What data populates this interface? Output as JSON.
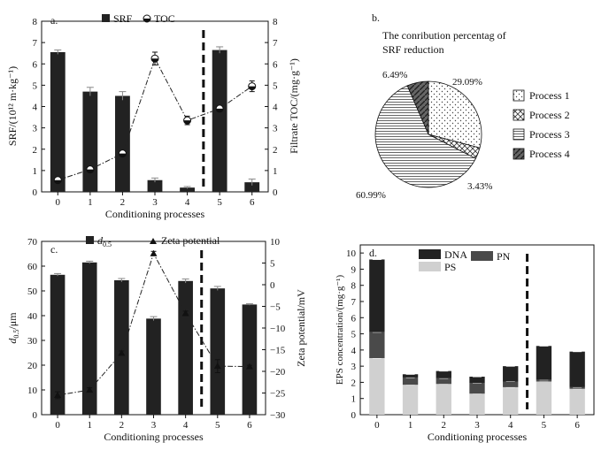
{
  "chart_data": [
    {
      "panel": "a.",
      "type": "bar",
      "title": "",
      "xlabel": "Conditioning processes",
      "ylabel": "SRF/(10¹² m·kg⁻¹)",
      "y2label": "Filtrate TOC/(mg·g⁻¹)",
      "categories": [
        "0",
        "1",
        "2",
        "3",
        "4",
        "5",
        "6"
      ],
      "ylim": [
        0,
        8
      ],
      "y2lim": [
        0,
        8
      ],
      "yticks": [
        "0",
        "1",
        "2",
        "3",
        "4",
        "5",
        "6",
        "7",
        "8"
      ],
      "y2ticks": [
        "0",
        "1",
        "2",
        "3",
        "4",
        "5",
        "6",
        "7",
        "8"
      ],
      "legend": [
        "SRF",
        "TOC"
      ],
      "series": [
        {
          "name": "SRF",
          "type": "bar",
          "values": [
            6.55,
            4.7,
            4.5,
            0.55,
            0.2,
            6.65,
            0.45
          ],
          "errors": [
            0.1,
            0.2,
            0.2,
            0.1,
            0.05,
            0.15,
            0.15
          ],
          "axis": "left"
        },
        {
          "name": "TOC",
          "type": "line",
          "values": [
            0.55,
            1.05,
            1.8,
            6.25,
            3.35,
            3.9,
            4.95
          ],
          "errors": [
            0.1,
            0.1,
            0.05,
            0.3,
            0.2,
            0.05,
            0.25
          ],
          "axis": "right"
        }
      ],
      "separator_after": "4"
    },
    {
      "panel": "b.",
      "type": "pie",
      "title": "The conribution percentag of SRF reduction",
      "labels": [
        "Process 1",
        "Process 2",
        "Process 3",
        "Process 4"
      ],
      "values": [
        29.09,
        3.43,
        60.99,
        6.49
      ],
      "value_labels": [
        "29.09%",
        "3.43%",
        "60.99%",
        "6.49%"
      ]
    },
    {
      "panel": "c.",
      "type": "bar",
      "xlabel": "Conditioning processes",
      "ylabel": "d0.5/μm",
      "y2label": "Zeta potential/mV",
      "categories": [
        "0",
        "1",
        "2",
        "3",
        "4",
        "5",
        "6"
      ],
      "ylim": [
        0,
        70
      ],
      "y2lim": [
        -30,
        10
      ],
      "yticks": [
        "0",
        "10",
        "20",
        "30",
        "40",
        "50",
        "60",
        "70"
      ],
      "y2ticks": [
        "−30",
        "−25",
        "−20",
        "−15",
        "−10",
        "−5",
        "0",
        "5",
        "10"
      ],
      "legend": [
        "d0.5",
        "Zeta potential"
      ],
      "series": [
        {
          "name": "d0.5",
          "type": "bar",
          "values": [
            56.5,
            61.5,
            54.3,
            38.8,
            54.0,
            51.0,
            44.5
          ],
          "errors": [
            0.5,
            0.5,
            0.7,
            0.8,
            0.8,
            0.8,
            0.3
          ],
          "axis": "left"
        },
        {
          "name": "Zeta potential",
          "type": "line",
          "values": [
            -25.5,
            -24.3,
            -15.8,
            7.2,
            -6.6,
            -18.8,
            -18.9
          ],
          "errors": [
            0.8,
            0.5,
            0.5,
            0.5,
            0.5,
            1.5,
            0.3
          ],
          "axis": "right"
        }
      ],
      "separator_after": "4"
    },
    {
      "panel": "d.",
      "type": "bar",
      "stacked": true,
      "xlabel": "Conditioning processes",
      "ylabel": "EPS concentration/(mg·g⁻¹)",
      "categories": [
        "0",
        "1",
        "2",
        "3",
        "4",
        "5",
        "6"
      ],
      "ylim": [
        0,
        10.5
      ],
      "yticks": [
        "0",
        "1",
        "2",
        "3",
        "4",
        "5",
        "6",
        "7",
        "8",
        "9",
        "10"
      ],
      "legend": [
        "DNA",
        "PN",
        "PS"
      ],
      "series": [
        {
          "name": "PS",
          "values": [
            3.5,
            1.85,
            1.9,
            1.3,
            1.7,
            2.05,
            1.6
          ]
        },
        {
          "name": "PN",
          "values": [
            1.6,
            0.45,
            0.35,
            0.65,
            0.35,
            0.1,
            0.1
          ]
        },
        {
          "name": "DNA",
          "values": [
            4.5,
            0.2,
            0.45,
            0.4,
            0.95,
            2.1,
            2.2
          ]
        }
      ],
      "separator_after": "4"
    }
  ],
  "colors": {
    "bar_dark": "#222222",
    "pn_gray": "#4a4a4a",
    "ps_light": "#d0d0d0",
    "line": "#222222"
  }
}
